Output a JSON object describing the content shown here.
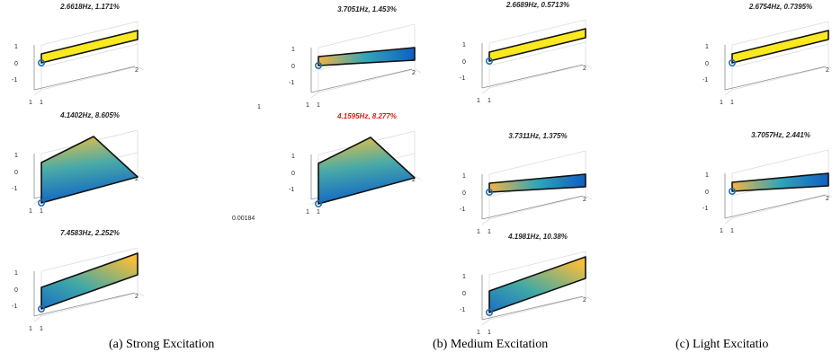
{
  "colors": {
    "yellow": "#f9e91e",
    "orange": "#f2b443",
    "teal": "#31a4b9",
    "blue": "#0f5fc0",
    "highlight": "#e41a1c",
    "title": "#262626",
    "grid": "#dcdcdc"
  },
  "ticks": {
    "z": [
      "1",
      "0",
      "-1"
    ],
    "x": "1",
    "y": "1",
    "depth": "2"
  },
  "marker_icon": "circle-marker-icon",
  "plots": [
    {
      "title": "2.6618Hz, 1.171%",
      "shape": "flat",
      "highlight": false
    },
    {
      "title": "3.7051Hz, 1.453%",
      "shape": "twist",
      "highlight": false
    },
    {
      "title": "2.6689Hz, 0.5713%",
      "shape": "flat",
      "highlight": false
    },
    {
      "title": "2.6754Hz, 0.7395%",
      "shape": "flat",
      "highlight": false
    },
    {
      "title": "4.1402Hz, 8.605%",
      "shape": "bending",
      "highlight": false
    },
    {
      "title": "4.1595Hz, 8.277%",
      "shape": "bending",
      "highlight": true
    },
    {
      "title": "3.7311Hz, 1.375%",
      "shape": "twist",
      "highlight": false
    },
    {
      "title": "3.7057Hz, 2.441%",
      "shape": "twist",
      "highlight": false
    },
    {
      "title": "7.4583Hz, 2.252%",
      "shape": "shear",
      "highlight": false
    },
    {
      "title": "4.1981Hz, 10.38%",
      "shape": "shear",
      "highlight": false
    }
  ],
  "stray_labels": {
    "one": "1",
    "small": "0.00184"
  },
  "captions": {
    "strong": "(a) Strong Excitation",
    "medium": "(b) Medium Excitation",
    "light": "(c) Light Excitatio"
  }
}
